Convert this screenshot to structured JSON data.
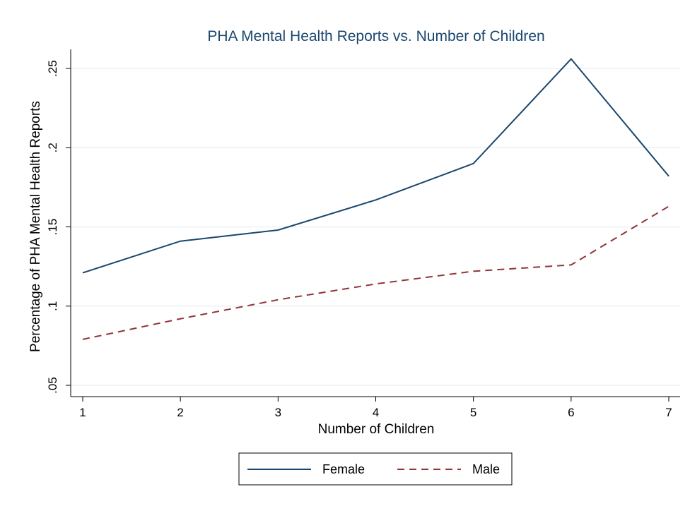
{
  "chart_data": {
    "type": "line",
    "title": "PHA Mental Health Reports vs. Number of Children",
    "xlabel": "Number of Children",
    "ylabel": "Percentage of PHA Mental Health Reports",
    "x": [
      1,
      2,
      3,
      4,
      5,
      6,
      7
    ],
    "xlim": [
      1,
      7
    ],
    "ylim": [
      0.05,
      0.25
    ],
    "xticks": [
      "1",
      "2",
      "3",
      "4",
      "5",
      "6",
      "7"
    ],
    "yticks": [
      {
        "value": 0.05,
        "label": ".05"
      },
      {
        "value": 0.1,
        "label": ".1"
      },
      {
        "value": 0.15,
        "label": ".15"
      },
      {
        "value": 0.2,
        "label": ".2"
      },
      {
        "value": 0.25,
        "label": ".25"
      }
    ],
    "grid": true,
    "legend_position": "bottom",
    "series": [
      {
        "name": "Female",
        "values": [
          0.121,
          0.141,
          0.148,
          0.167,
          0.19,
          0.256,
          0.182
        ],
        "color": "#1a476f",
        "style": "solid"
      },
      {
        "name": "Male",
        "values": [
          0.079,
          0.092,
          0.104,
          0.114,
          0.122,
          0.126,
          0.163
        ],
        "color": "#90353b",
        "style": "dashed"
      }
    ]
  }
}
